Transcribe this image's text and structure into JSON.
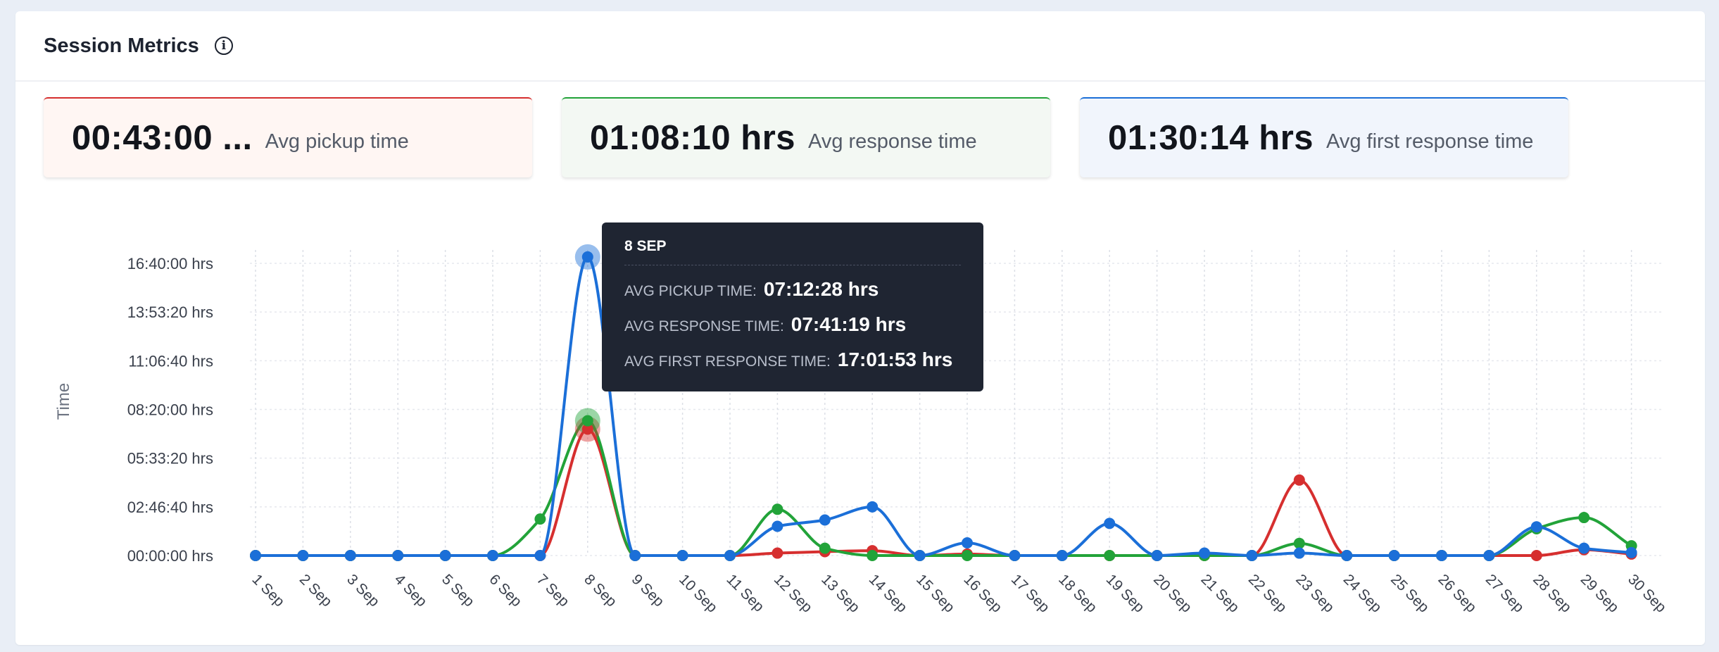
{
  "header": {
    "title": "Session Metrics"
  },
  "kpis": [
    {
      "value": "00:43:00 ...",
      "label": "Avg pickup time",
      "accent": "#d62f2f",
      "bg": "#fff6f3"
    },
    {
      "value": "01:08:10 hrs",
      "label": "Avg response time",
      "accent": "#22a339",
      "bg": "#f3f8f3"
    },
    {
      "value": "01:30:14 hrs",
      "label": "Avg first response time",
      "accent": "#1b6fd8",
      "bg": "#f1f5fc"
    }
  ],
  "tooltip": {
    "date": "8 SEP",
    "rows": [
      {
        "label": "AVG PICKUP TIME:",
        "value": "07:12:28 hrs"
      },
      {
        "label": "AVG RESPONSE TIME:",
        "value": "07:41:19 hrs"
      },
      {
        "label": "AVG FIRST RESPONSE TIME:",
        "value": "17:01:53 hrs"
      }
    ]
  },
  "chart_data": {
    "type": "line",
    "ylabel": "Time",
    "y_tick_values": [
      0,
      10000,
      20000,
      30000,
      40000,
      50000,
      60000
    ],
    "y_tick_labels": [
      "00:00:00 hrs",
      "02:46:40 hrs",
      "05:33:20 hrs",
      "08:20:00 hrs",
      "11:06:40 hrs",
      "13:53:20 hrs",
      "16:40:00 hrs"
    ],
    "ylim": [
      0,
      60000
    ],
    "grid": true,
    "categories": [
      "1 Sep",
      "2 Sep",
      "3 Sep",
      "4 Sep",
      "5 Sep",
      "6 Sep",
      "7 Sep",
      "8 Sep",
      "9 Sep",
      "10 Sep",
      "11 Sep",
      "12 Sep",
      "13 Sep",
      "14 Sep",
      "15 Sep",
      "16 Sep",
      "17 Sep",
      "18 Sep",
      "19 Sep",
      "20 Sep",
      "21 Sep",
      "22 Sep",
      "23 Sep",
      "24 Sep",
      "25 Sep",
      "26 Sep",
      "27 Sep",
      "28 Sep",
      "29 Sep",
      "30 Sep"
    ],
    "highlight_index": 7,
    "series": [
      {
        "color": "#d62f2f",
        "values": [
          0,
          0,
          0,
          0,
          0,
          0,
          0,
          25948,
          0,
          0,
          0,
          500,
          800,
          1000,
          0,
          300,
          0,
          0,
          0,
          0,
          0,
          0,
          15500,
          0,
          0,
          0,
          0,
          0,
          1200,
          300
        ]
      },
      {
        "color": "#22a339",
        "values": [
          0,
          0,
          0,
          0,
          0,
          0,
          7500,
          27679,
          0,
          0,
          0,
          9500,
          1500,
          0,
          0,
          0,
          0,
          0,
          0,
          0,
          0,
          0,
          2500,
          0,
          0,
          0,
          0,
          5500,
          7800,
          2000
        ]
      },
      {
        "color": "#1b6fd8",
        "values": [
          0,
          0,
          0,
          0,
          0,
          0,
          0,
          61313,
          0,
          0,
          0,
          6000,
          7300,
          10000,
          0,
          2600,
          0,
          0,
          6600,
          0,
          500,
          0,
          500,
          0,
          0,
          0,
          0,
          5900,
          1500,
          600
        ]
      }
    ]
  }
}
